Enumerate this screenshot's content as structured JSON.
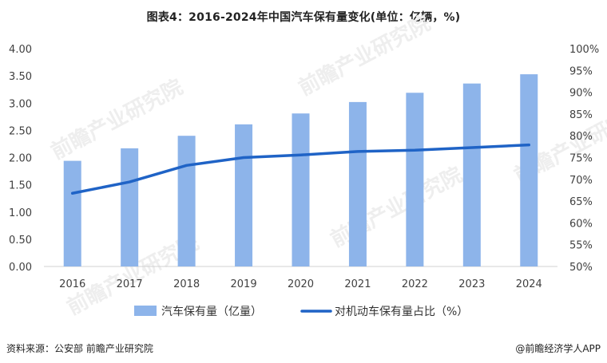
{
  "title": "图表4：2016-2024年中国汽车保有量变化(单位：亿辆，%)",
  "footer": {
    "source": "资料来源：公安部 前瞻产业研究院",
    "brand": "@前瞻经济学人APP"
  },
  "watermark": "前瞻产业研究院",
  "colors": {
    "bar": "#8db4ea",
    "line": "#1f63c6",
    "axis_text": "#404040",
    "gridline": "#d9d9d9"
  },
  "chart_data": {
    "type": "bar",
    "categories": [
      "2016",
      "2017",
      "2018",
      "2019",
      "2020",
      "2021",
      "2022",
      "2023",
      "2024"
    ],
    "series": [
      {
        "name": "汽车保有量（亿量）",
        "type": "bar",
        "axis": "left",
        "values": [
          1.94,
          2.17,
          2.4,
          2.61,
          2.81,
          3.02,
          3.19,
          3.36,
          3.53
        ]
      },
      {
        "name": "对机动车保有量占比（%）",
        "type": "line",
        "axis": "right",
        "values": [
          66.8,
          69.4,
          73.2,
          75.0,
          75.6,
          76.4,
          76.7,
          77.3,
          77.9
        ]
      }
    ],
    "left_axis": {
      "min": 0,
      "max": 4,
      "step": 0.5,
      "ticks": [
        "0.00",
        "0.50",
        "1.00",
        "1.50",
        "2.00",
        "2.50",
        "3.00",
        "3.50",
        "4.00"
      ]
    },
    "right_axis": {
      "min": 50,
      "max": 100,
      "step": 5,
      "ticks": [
        "50%",
        "55%",
        "60%",
        "65%",
        "70%",
        "75%",
        "80%",
        "85%",
        "90%",
        "95%",
        "100%"
      ]
    },
    "legend_position": "bottom",
    "grid": false
  }
}
